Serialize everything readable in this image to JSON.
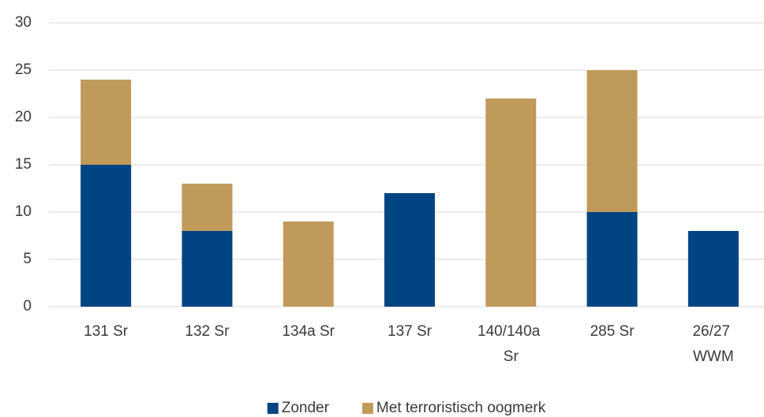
{
  "chart_data": {
    "type": "stacked_bar",
    "categories": [
      "131 Sr",
      "132 Sr",
      "134a Sr",
      "137 Sr",
      "140/140a Sr",
      "285 Sr",
      "26/27 WWM"
    ],
    "series": [
      {
        "name": "Zonder",
        "color": "#004481",
        "values": [
          15,
          8,
          0,
          12,
          0,
          10,
          8
        ]
      },
      {
        "name": "Met terroristisch oogmerk",
        "color": "#c09a5b",
        "values": [
          9,
          5,
          9,
          0,
          22,
          15,
          0
        ]
      }
    ],
    "ylim": [
      0,
      30
    ],
    "yticks": [
      0,
      5,
      10,
      15,
      20,
      25,
      30
    ],
    "grid": true,
    "legend": "bottom"
  }
}
